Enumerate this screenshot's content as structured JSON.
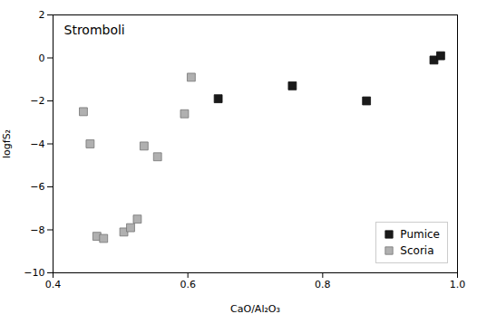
{
  "chart_data": {
    "type": "scatter",
    "title": "Stromboli",
    "xlabel": "CaO/Al₂O₃",
    "ylabel": "logfS₂",
    "xlim": [
      0.4,
      1.0
    ],
    "ylim": [
      -10,
      2
    ],
    "xticks": [
      0.4,
      0.6,
      0.8,
      {
        "value": 1.0,
        "label": "1.0"
      }
    ],
    "yticks": [
      -10,
      -8,
      -6,
      -4,
      -2,
      0,
      2
    ],
    "grid": false,
    "legend": "lower right",
    "series": [
      {
        "name": "Pumice",
        "color": "#1a1a1a",
        "marker": "square",
        "x": [
          0.645,
          0.755,
          0.865,
          0.965,
          0.975
        ],
        "values": [
          -1.9,
          -1.3,
          -2.0,
          -0.1,
          0.1
        ]
      },
      {
        "name": "Scoria",
        "color": "#b0b0b0",
        "marker": "square",
        "x": [
          0.445,
          0.455,
          0.465,
          0.475,
          0.505,
          0.515,
          0.525,
          0.535,
          0.555,
          0.595,
          0.605
        ],
        "values": [
          -2.5,
          -4.0,
          -8.3,
          -8.4,
          -8.1,
          -7.9,
          -7.5,
          -4.1,
          -4.6,
          -2.6,
          -0.9
        ]
      }
    ]
  }
}
